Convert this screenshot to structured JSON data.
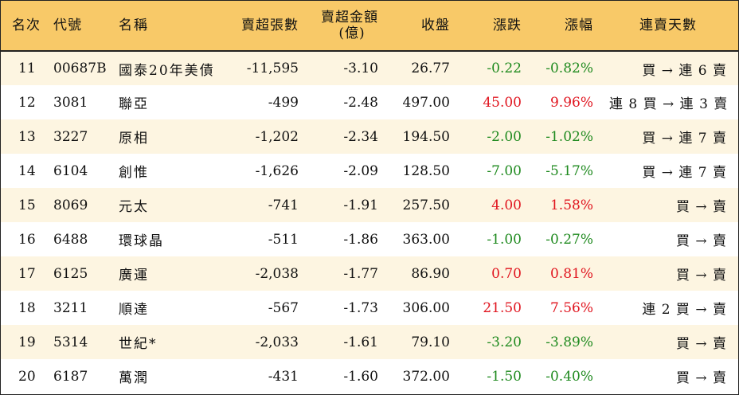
{
  "colors": {
    "header_bg": "#f8c968",
    "odd_row_bg": "#fdf5e1",
    "even_row_bg": "#ffffff",
    "up": "#e0141e",
    "down": "#1f8a1f"
  },
  "headers": {
    "rank": "名次",
    "code": "代號",
    "name": "名稱",
    "net_shares": "賣超張數",
    "net_amount_line1": "賣超金額",
    "net_amount_line2": "(億)",
    "close": "收盤",
    "change": "漲跌",
    "change_pct": "漲幅",
    "streak": "連賣天數"
  },
  "rows": [
    {
      "rank": "11",
      "code": "00687B",
      "name": "國泰20年美債",
      "net_shares": "-11,595",
      "net_amount": "-3.10",
      "close": "26.77",
      "change": "-0.22",
      "change_pct": "-0.82%",
      "streak": "買 → 連 6 賣",
      "dir": "neg"
    },
    {
      "rank": "12",
      "code": "3081",
      "name": "聯亞",
      "net_shares": "-499",
      "net_amount": "-2.48",
      "close": "497.00",
      "change": "45.00",
      "change_pct": "9.96%",
      "streak": "連 8 買 → 連 3 賣",
      "dir": "pos"
    },
    {
      "rank": "13",
      "code": "3227",
      "name": "原相",
      "net_shares": "-1,202",
      "net_amount": "-2.34",
      "close": "194.50",
      "change": "-2.00",
      "change_pct": "-1.02%",
      "streak": "買 → 連 7 賣",
      "dir": "neg"
    },
    {
      "rank": "14",
      "code": "6104",
      "name": "創惟",
      "net_shares": "-1,626",
      "net_amount": "-2.09",
      "close": "128.50",
      "change": "-7.00",
      "change_pct": "-5.17%",
      "streak": "買 → 連 7 賣",
      "dir": "neg"
    },
    {
      "rank": "15",
      "code": "8069",
      "name": "元太",
      "net_shares": "-741",
      "net_amount": "-1.91",
      "close": "257.50",
      "change": "4.00",
      "change_pct": "1.58%",
      "streak": "買 → 賣",
      "dir": "pos"
    },
    {
      "rank": "16",
      "code": "6488",
      "name": "環球晶",
      "net_shares": "-511",
      "net_amount": "-1.86",
      "close": "363.00",
      "change": "-1.00",
      "change_pct": "-0.27%",
      "streak": "買 → 賣",
      "dir": "neg"
    },
    {
      "rank": "17",
      "code": "6125",
      "name": "廣運",
      "net_shares": "-2,038",
      "net_amount": "-1.77",
      "close": "86.90",
      "change": "0.70",
      "change_pct": "0.81%",
      "streak": "買 → 賣",
      "dir": "pos"
    },
    {
      "rank": "18",
      "code": "3211",
      "name": "順達",
      "net_shares": "-567",
      "net_amount": "-1.73",
      "close": "306.00",
      "change": "21.50",
      "change_pct": "7.56%",
      "streak": "連 2 買 → 賣",
      "dir": "pos"
    },
    {
      "rank": "19",
      "code": "5314",
      "name": "世紀*",
      "net_shares": "-2,033",
      "net_amount": "-1.61",
      "close": "79.10",
      "change": "-3.20",
      "change_pct": "-3.89%",
      "streak": "買 → 賣",
      "dir": "neg"
    },
    {
      "rank": "20",
      "code": "6187",
      "name": "萬潤",
      "net_shares": "-431",
      "net_amount": "-1.60",
      "close": "372.00",
      "change": "-1.50",
      "change_pct": "-0.40%",
      "streak": "買 → 賣",
      "dir": "neg"
    }
  ]
}
